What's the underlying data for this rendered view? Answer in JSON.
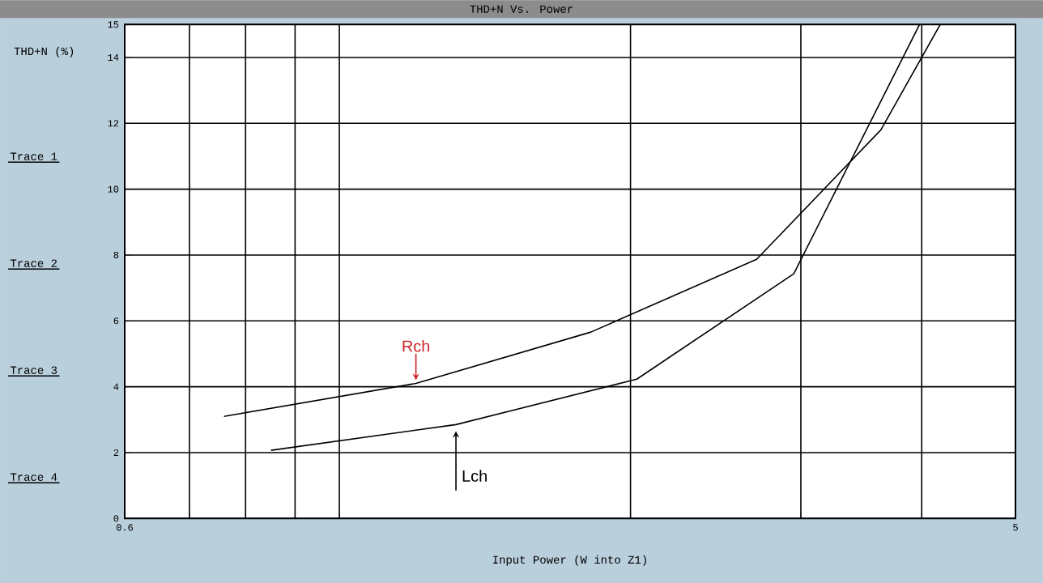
{
  "chart_data": {
    "type": "line",
    "title": "THD+N Vs. Power",
    "xlabel": "Input Power (W into Z1)",
    "ylabel": "THD+N (%)",
    "log": "x",
    "xlim": [
      0.6,
      5
    ],
    "ylim": [
      0,
      15
    ],
    "xticks": [
      0.6,
      {
        "value": 0.7,
        "label": null
      },
      {
        "value": 0.8,
        "label": null
      },
      {
        "value": 0.9,
        "label": null
      },
      {
        "value": 1,
        "label": null
      },
      {
        "value": 2,
        "label": null
      },
      {
        "value": 3,
        "label": null
      },
      {
        "value": 4,
        "label": null
      },
      5
    ],
    "yticks": [
      0,
      2,
      4,
      6,
      8,
      10,
      12,
      14,
      15
    ],
    "grid": true,
    "marker": "none",
    "line_style": "solid",
    "series": [
      {
        "name": "Rch",
        "color": "#000000",
        "x": [
          0.76,
          1.2,
          1.82,
          2.7,
          3.63,
          4.18
        ],
        "values": [
          3.1,
          4.1,
          5.66,
          7.87,
          11.8,
          15
        ]
      },
      {
        "name": "Lch",
        "color": "#000000",
        "x": [
          0.85,
          1.32,
          2.03,
          2.95,
          3.98
        ],
        "values": [
          2.07,
          2.85,
          4.23,
          7.43,
          15
        ]
      }
    ],
    "annotations": [
      "Trace 1",
      "Trace 2",
      "Trace 3",
      "Trace 4"
    ]
  }
}
